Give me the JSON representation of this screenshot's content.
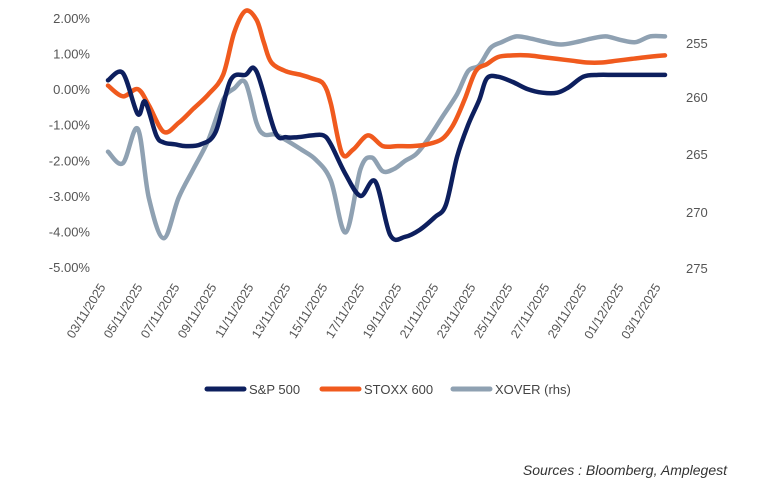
{
  "chart_data": {
    "type": "line",
    "title": "",
    "xlabel": "",
    "ylabel": "",
    "y_left_lim": [
      -5,
      2
    ],
    "y_left_ticks": [
      "2.00%",
      "1.00%",
      "0.00%",
      "-1.00%",
      "-2.00%",
      "-3.00%",
      "-4.00%",
      "-5.00%"
    ],
    "y_left_tick_values": [
      2,
      1,
      0,
      -1,
      -2,
      -3,
      -4,
      -5
    ],
    "y_right_lim": [
      275,
      253
    ],
    "y_right_ticks": [
      "255",
      "260",
      "265",
      "270",
      "275"
    ],
    "y_right_tick_values": [
      255,
      260,
      265,
      270,
      275
    ],
    "x_ticks": [
      "03/11/2025",
      "05/11/2025",
      "07/11/2025",
      "09/11/2025",
      "11/11/2025",
      "13/11/2025",
      "15/11/2025",
      "17/11/2025",
      "19/11/2025",
      "21/11/2025",
      "23/11/2025",
      "25/11/2025",
      "27/11/2025",
      "29/11/2025",
      "01/12/2025",
      "03/12/2025"
    ],
    "x_day_min": 0,
    "x_day_max": 30,
    "series": [
      {
        "name": "S&P 500",
        "axis": "left",
        "color": "#0d1f5e",
        "x": [
          0,
          0.8,
          1.6,
          2.0,
          2.6,
          3.0,
          3.6,
          4.2,
          5.0,
          5.8,
          6.6,
          7.4,
          8.0,
          9.0,
          9.6,
          10.2,
          11.0,
          11.6,
          12.0,
          12.8,
          13.6,
          14.4,
          15.2,
          16.0,
          16.8,
          17.6,
          18.2,
          18.8,
          19.4,
          20.0,
          20.4,
          21.0,
          21.8,
          22.6,
          23.4,
          24.2,
          24.8,
          25.6,
          26.4,
          27.2,
          28.0,
          28.6,
          29.2,
          30.0
        ],
        "values": [
          0.25,
          0.45,
          -0.7,
          -0.35,
          -1.3,
          -1.5,
          -1.55,
          -1.6,
          -1.55,
          -1.2,
          0.25,
          0.4,
          0.5,
          -1.2,
          -1.35,
          -1.35,
          -1.3,
          -1.3,
          -1.55,
          -2.4,
          -3.0,
          -2.6,
          -4.1,
          -4.15,
          -3.95,
          -3.6,
          -3.25,
          -1.9,
          -1.0,
          -0.3,
          0.3,
          0.35,
          0.2,
          0.0,
          -0.1,
          -0.1,
          0.05,
          0.35,
          0.4,
          0.4,
          0.4,
          0.4,
          0.4,
          0.4
        ]
      },
      {
        "name": "STOXX 600",
        "axis": "left",
        "color": "#f05a1e",
        "x": [
          0,
          0.8,
          1.6,
          2.2,
          3.0,
          3.8,
          4.6,
          5.4,
          6.2,
          6.8,
          7.4,
          8.0,
          8.4,
          8.8,
          9.6,
          10.4,
          11.0,
          11.6,
          12.0,
          12.6,
          13.2,
          14.0,
          14.8,
          15.6,
          16.4,
          17.2,
          18.0,
          18.6,
          19.2,
          19.8,
          20.4,
          21.0,
          21.8,
          22.6,
          23.4,
          24.2,
          25.0,
          25.8,
          26.6,
          27.4,
          28.2,
          29.0,
          30.0
        ],
        "values": [
          0.1,
          -0.2,
          0.0,
          -0.45,
          -1.2,
          -0.95,
          -0.55,
          -0.15,
          0.4,
          1.6,
          2.2,
          1.95,
          1.3,
          0.75,
          0.5,
          0.4,
          0.3,
          0.15,
          -0.4,
          -1.8,
          -1.7,
          -1.3,
          -1.6,
          -1.6,
          -1.6,
          -1.55,
          -1.4,
          -1.0,
          -0.3,
          0.5,
          0.7,
          0.9,
          0.95,
          0.95,
          0.9,
          0.85,
          0.8,
          0.75,
          0.75,
          0.8,
          0.85,
          0.9,
          0.95
        ]
      },
      {
        "name": "XOVER (rhs)",
        "axis": "right",
        "color": "#8fa1b2",
        "x": [
          0,
          0.8,
          1.6,
          2.2,
          3.0,
          3.8,
          4.6,
          5.4,
          6.2,
          6.8,
          7.4,
          8.0,
          8.4,
          9.0,
          9.6,
          10.4,
          11.2,
          12.0,
          12.8,
          13.6,
          14.2,
          14.8,
          15.4,
          16.0,
          16.6,
          17.2,
          18.0,
          18.8,
          19.4,
          20.0,
          20.6,
          21.2,
          22.0,
          22.8,
          23.6,
          24.4,
          25.2,
          26.0,
          26.8,
          27.6,
          28.4,
          29.2,
          30.0
        ],
        "values": [
          265.0,
          266.0,
          263.0,
          269.0,
          272.5,
          269.0,
          266.5,
          264.0,
          260.5,
          259.5,
          259.0,
          262.5,
          263.5,
          263.5,
          264.0,
          264.8,
          265.7,
          267.5,
          272.0,
          266.5,
          265.5,
          266.7,
          266.5,
          265.8,
          265.2,
          264.0,
          262.0,
          260.0,
          258.0,
          257.5,
          256.0,
          255.5,
          255.0,
          255.2,
          255.5,
          255.7,
          255.5,
          255.2,
          255.0,
          255.3,
          255.5,
          255.0,
          255.0
        ]
      }
    ],
    "legend_position": "bottom",
    "grid": false
  },
  "source_text": "Sources : Bloomberg, Amplegest"
}
